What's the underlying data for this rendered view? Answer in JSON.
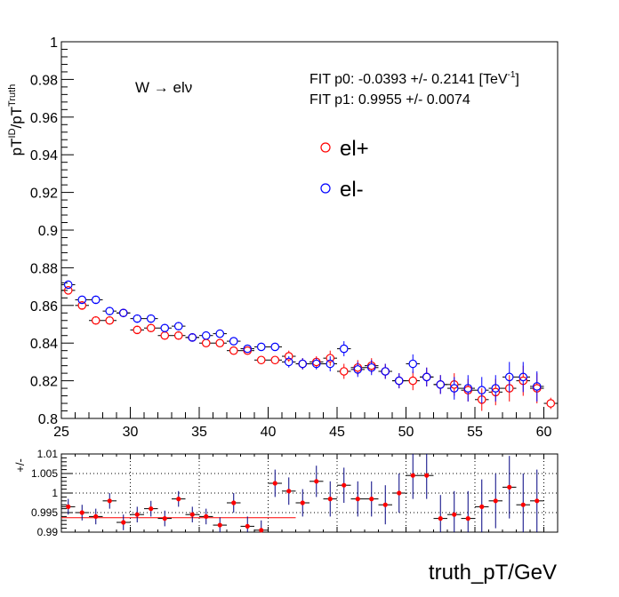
{
  "chart_data": [
    {
      "type": "scatter",
      "x_label": "truth_pT/GeV",
      "y_label": {
        "base": "pT",
        "sup1": "ID",
        "mid": "/pT",
        "sup2": "Truth"
      },
      "xlim": [
        25,
        61
      ],
      "ylim": [
        0.8,
        1.0
      ],
      "x_ticks": [
        25,
        30,
        35,
        40,
        45,
        50,
        55,
        60
      ],
      "y_ticks": [
        0.8,
        0.82,
        0.84,
        0.86,
        0.88,
        0.9,
        0.92,
        0.94,
        0.96,
        0.98,
        1
      ],
      "tick_labels_y": [
        "0.8",
        "0.82",
        "0.84",
        "0.86",
        "0.88",
        "0.9",
        "0.92",
        "0.94",
        "0.96",
        "0.98",
        "1"
      ],
      "tick_labels_x": [
        "25",
        "30",
        "35",
        "40",
        "45",
        "50",
        "55",
        "60"
      ],
      "annotation_process": "W → eln",
      "process_main": "W → el",
      "process_nu": "ν",
      "fit_line1_pre": "FIT p0: -0.0393 +/- 0.2141 [TeV",
      "fit_line1_sup": "-1",
      "fit_line1_post": "]",
      "fit_line2": "FIT p1: 0.9955 +/- 0.0074",
      "colors": {
        "el_plus": "#ff0000",
        "el_minus": "#0000ff"
      },
      "series": [
        {
          "name": "el+",
          "x": [
            25.5,
            26.5,
            27.5,
            28.5,
            29.5,
            30.5,
            31.5,
            32.5,
            33.5,
            34.5,
            35.5,
            36.5,
            37.5,
            38.5,
            39.5,
            40.5,
            41.5,
            42.5,
            43.5,
            44.5,
            45.5,
            46.5,
            47.5,
            48.5,
            49.5,
            50.5,
            51.5,
            52.5,
            53.5,
            54.5,
            55.5,
            56.5,
            57.5,
            58.5,
            59.5,
            60.5
          ],
          "y": [
            0.868,
            0.86,
            0.852,
            0.852,
            0.856,
            0.847,
            0.848,
            0.844,
            0.844,
            0.843,
            0.84,
            0.84,
            0.836,
            0.836,
            0.831,
            0.831,
            0.833,
            0.829,
            0.83,
            0.832,
            0.825,
            0.827,
            0.828,
            0.825,
            0.82,
            0.82,
            0.822,
            0.818,
            0.818,
            0.815,
            0.81,
            0.814,
            0.816,
            0.82,
            0.816,
            0.808
          ],
          "err": [
            0.002,
            0.0015,
            0.0015,
            0.0015,
            0.0015,
            0.0015,
            0.0015,
            0.0015,
            0.0015,
            0.0015,
            0.002,
            0.002,
            0.002,
            0.002,
            0.002,
            0.002,
            0.003,
            0.003,
            0.003,
            0.004,
            0.004,
            0.004,
            0.004,
            0.004,
            0.004,
            0.005,
            0.005,
            0.005,
            0.006,
            0.006,
            0.006,
            0.007,
            0.007,
            0.008,
            0.008,
            0.003
          ]
        },
        {
          "name": "el-",
          "x": [
            25.5,
            26.5,
            27.5,
            28.5,
            29.5,
            30.5,
            31.5,
            32.5,
            33.5,
            34.5,
            35.5,
            36.5,
            37.5,
            38.5,
            39.5,
            40.5,
            41.5,
            42.5,
            43.5,
            44.5,
            45.5,
            46.5,
            47.5,
            48.5,
            49.5,
            50.5,
            51.5,
            52.5,
            53.5,
            54.5,
            55.5,
            56.5,
            57.5,
            58.5,
            59.5
          ],
          "y": [
            0.871,
            0.863,
            0.863,
            0.857,
            0.856,
            0.853,
            0.853,
            0.848,
            0.849,
            0.843,
            0.844,
            0.845,
            0.841,
            0.837,
            0.838,
            0.838,
            0.83,
            0.829,
            0.829,
            0.829,
            0.837,
            0.826,
            0.827,
            0.825,
            0.82,
            0.829,
            0.822,
            0.818,
            0.816,
            0.816,
            0.815,
            0.816,
            0.822,
            0.822,
            0.817
          ],
          "err": [
            0.002,
            0.002,
            0.0015,
            0.0015,
            0.0015,
            0.0015,
            0.0015,
            0.0015,
            0.0015,
            0.0015,
            0.002,
            0.002,
            0.002,
            0.002,
            0.002,
            0.002,
            0.003,
            0.003,
            0.003,
            0.004,
            0.004,
            0.004,
            0.004,
            0.004,
            0.004,
            0.005,
            0.005,
            0.005,
            0.006,
            0.007,
            0.007,
            0.007,
            0.008,
            0.008,
            0.008
          ]
        }
      ]
    },
    {
      "type": "scatter",
      "y_label": "+/-",
      "xlim": [
        25,
        61
      ],
      "ylim": [
        0.99,
        1.01
      ],
      "y_ticks": [
        0.99,
        0.995,
        1,
        1.005,
        1.01
      ],
      "tick_labels_y": [
        "0.99",
        "0.995",
        "1",
        "1.005",
        "1.01"
      ],
      "fit_line": {
        "x": [
          25,
          42
        ],
        "y": [
          0.9937,
          0.9937
        ]
      },
      "series": [
        {
          "name": "ratio",
          "x": [
            25.5,
            26.5,
            27.5,
            28.5,
            29.5,
            30.5,
            31.5,
            32.5,
            33.5,
            34.5,
            35.5,
            36.5,
            37.5,
            38.5,
            39.5,
            40.5,
            41.5,
            42.5,
            43.5,
            44.5,
            45.5,
            46.5,
            47.5,
            48.5,
            49.5,
            50.5,
            51.5,
            52.5,
            53.5,
            54.5,
            55.5,
            56.5,
            57.5,
            58.5,
            59.5
          ],
          "y": [
            0.9965,
            0.995,
            0.994,
            0.998,
            0.9925,
            0.9945,
            0.996,
            0.9935,
            0.9985,
            0.9945,
            0.994,
            0.9918,
            0.9975,
            0.9915,
            0.9905,
            1.0025,
            1.0005,
            0.9975,
            1.003,
            0.9985,
            1.002,
            0.9985,
            0.9985,
            0.997,
            1.0,
            1.0045,
            1.0045,
            0.9935,
            0.9945,
            0.9935,
            0.9965,
            0.998,
            1.0015,
            0.997,
            0.998
          ],
          "err": [
            0.002,
            0.002,
            0.002,
            0.002,
            0.002,
            0.002,
            0.002,
            0.002,
            0.002,
            0.002,
            0.002,
            0.002,
            0.0025,
            0.0025,
            0.0025,
            0.0035,
            0.0035,
            0.0035,
            0.004,
            0.0045,
            0.0045,
            0.0045,
            0.0045,
            0.005,
            0.005,
            0.006,
            0.006,
            0.006,
            0.006,
            0.007,
            0.007,
            0.007,
            0.008,
            0.008,
            0.008
          ]
        }
      ]
    }
  ]
}
